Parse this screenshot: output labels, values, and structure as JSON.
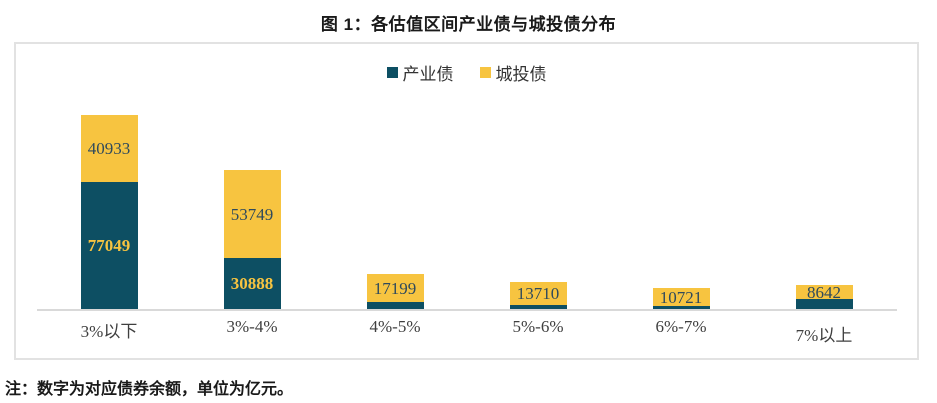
{
  "title": "图 1：各估值区间产业债与城投债分布",
  "note": "注：数字为对应债券余额，单位为亿元。",
  "legend": {
    "items": [
      {
        "label": "产业债",
        "color": "#0d4f63"
      },
      {
        "label": "城投债",
        "color": "#f7c440"
      }
    ]
  },
  "colors": {
    "industrial_bond": "#0d4f63",
    "urban_investment_bond": "#f7c440",
    "label_on_dark": "#f7c440",
    "label_on_yellow": "#2f4a5c",
    "axis_line": "#d9d9d9",
    "frame_border": "#e2e2e2"
  },
  "chart_data": {
    "type": "bar",
    "stacked": true,
    "title": "图 1：各估值区间产业债与城投债分布",
    "categories": [
      "3%以下",
      "3%-4%",
      "4%-5%",
      "5%-6%",
      "6%-7%",
      "7%以上"
    ],
    "series": [
      {
        "name": "产业债",
        "key": "industrial-bond",
        "color": "#0d4f63",
        "values": [
          77049,
          30888,
          4000,
          2400,
          1800,
          5800
        ],
        "value_labels": [
          "77049",
          "30888",
          "",
          "",
          "",
          ""
        ],
        "label_color": "#f7c440"
      },
      {
        "name": "城投债",
        "key": "urban-investment-bond",
        "color": "#f7c440",
        "values": [
          40933,
          53749,
          17199,
          13710,
          10721,
          8642
        ],
        "value_labels": [
          "40933",
          "53749",
          "17199",
          "13710",
          "10721",
          "8642"
        ],
        "label_color": "#2f4a5c"
      }
    ],
    "legend_position": "top-center",
    "grid": false,
    "y_axis_visible": false,
    "unit": "亿元"
  }
}
